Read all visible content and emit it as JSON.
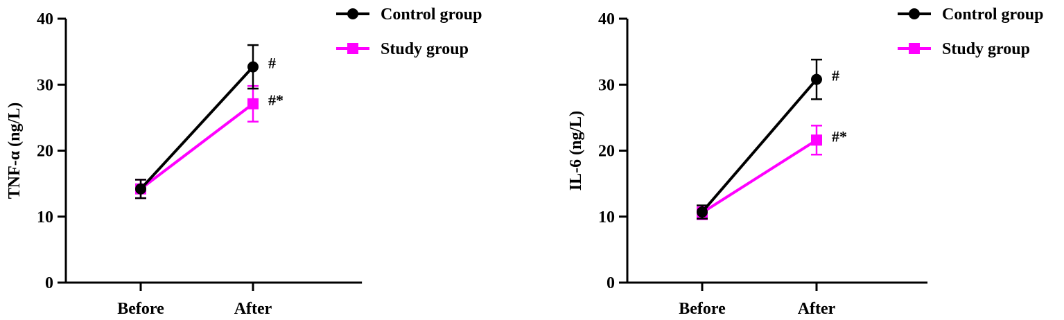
{
  "colors": {
    "control": "#000000",
    "study": "#ff00ff"
  },
  "chart_data": [
    {
      "type": "line",
      "ylabel": "TNF-α (ng/L)",
      "xlabel": "",
      "categories": [
        "Before",
        "After"
      ],
      "ylim": [
        0,
        40
      ],
      "yticks": [
        "0",
        "10",
        "20",
        "30",
        "40"
      ],
      "grid": false,
      "legend_placement": "right",
      "series": [
        {
          "name": "Control group",
          "marker": "circle",
          "color_key": "control",
          "values": [
            14.2,
            32.7
          ],
          "err": [
            1.4,
            3.3
          ]
        },
        {
          "name": "Study group",
          "marker": "square",
          "color_key": "study",
          "values": [
            14.2,
            27.1
          ],
          "err": [
            1.4,
            2.7
          ]
        }
      ],
      "annotations": [
        {
          "series": 0,
          "point": 1,
          "text": "#"
        },
        {
          "series": 1,
          "point": 1,
          "text": "#*"
        }
      ]
    },
    {
      "type": "line",
      "ylabel": "IL-6 (ng/L)",
      "xlabel": "",
      "categories": [
        "Before",
        "After"
      ],
      "ylim": [
        0,
        40
      ],
      "yticks": [
        "0",
        "10",
        "20",
        "30",
        "40"
      ],
      "grid": false,
      "legend_placement": "right",
      "series": [
        {
          "name": "Control group",
          "marker": "circle",
          "color_key": "control",
          "values": [
            10.7,
            30.8
          ],
          "err": [
            1.0,
            3.0
          ]
        },
        {
          "name": "Study group",
          "marker": "square",
          "color_key": "study",
          "values": [
            10.6,
            21.6
          ],
          "err": [
            1.0,
            2.2
          ]
        }
      ],
      "annotations": [
        {
          "series": 0,
          "point": 1,
          "text": "#"
        },
        {
          "series": 1,
          "point": 1,
          "text": "#*"
        }
      ]
    }
  ]
}
